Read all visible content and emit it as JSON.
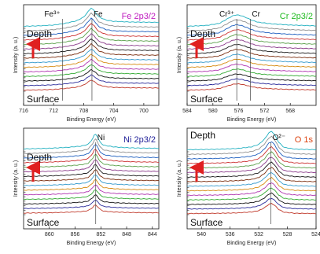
{
  "palette": [
    "#c0392b",
    "#2a2a9a",
    "#111111",
    "#33aa33",
    "#b035b0",
    "#d68a10",
    "#3399cc",
    "#7a2d0e",
    "#1a1a1a",
    "#8a3a8a",
    "#5aa04a",
    "#cc3333",
    "#1e5fbf",
    "#909090",
    "#22b0c0"
  ],
  "chart_data": [
    {
      "id": "fe",
      "type": "line",
      "title": "Fe 2p3/2",
      "title_color": "#c020c0",
      "xlabel": "Binding Energy (eV)",
      "ylabel": "Intensity (a. u.)",
      "xlim": [
        716,
        698
      ],
      "xticks": [
        716,
        712,
        708,
        704,
        700
      ],
      "top_label": "Depth",
      "bottom_label": "Surface",
      "markers": [
        {
          "label": "Fe³⁺",
          "x": 710.8
        },
        {
          "label": "Fe",
          "x": 706.9
        }
      ],
      "n_series": 15,
      "profile": [
        [
          716,
          0.1
        ],
        [
          714,
          0.12
        ],
        [
          712,
          0.16
        ],
        [
          710.5,
          0.24
        ],
        [
          709,
          0.36
        ],
        [
          708,
          0.55
        ],
        [
          707.4,
          0.82
        ],
        [
          707.0,
          1.0
        ],
        [
          706.6,
          0.86
        ],
        [
          706.0,
          0.56
        ],
        [
          705.0,
          0.4
        ],
        [
          704.0,
          0.34
        ],
        [
          702.0,
          0.31
        ],
        [
          700.0,
          0.3
        ],
        [
          698,
          0.29
        ]
      ]
    },
    {
      "id": "cr",
      "type": "line",
      "title": "Cr 2p3/2",
      "title_color": "#22bb22",
      "xlabel": "Binding Energy (eV)",
      "ylabel": "Intensity (a. u.)",
      "xlim": [
        584,
        564
      ],
      "xticks": [
        584,
        580,
        576,
        572,
        568
      ],
      "top_label": "Depth",
      "bottom_label": "Surface",
      "markers": [
        {
          "label": "Cr³⁺",
          "x": 576.3
        },
        {
          "label": "Cr",
          "x": 574.2
        }
      ],
      "n_series": 15,
      "profile": [
        [
          584,
          0.1
        ],
        [
          581,
          0.14
        ],
        [
          579,
          0.24
        ],
        [
          578,
          0.42
        ],
        [
          577,
          0.6
        ],
        [
          576.4,
          0.66
        ],
        [
          575.6,
          0.62
        ],
        [
          574.8,
          0.52
        ],
        [
          574.0,
          0.4
        ],
        [
          573.0,
          0.3
        ],
        [
          571,
          0.22
        ],
        [
          568,
          0.16
        ],
        [
          564,
          0.12
        ]
      ]
    },
    {
      "id": "ni",
      "type": "line",
      "title": "Ni 2p3/2",
      "title_color": "#222299",
      "xlabel": "Binding Energy (eV)",
      "ylabel": "Intensity (a. u.)",
      "xlim": [
        864,
        843
      ],
      "xticks": [
        860,
        856,
        852,
        848,
        844
      ],
      "top_label": "Depth",
      "bottom_label": "Surface",
      "markers": [
        {
          "label": "Ni",
          "x": 852.8
        }
      ],
      "n_series": 15,
      "profile": [
        [
          864,
          0.14
        ],
        [
          860,
          0.17
        ],
        [
          857,
          0.22
        ],
        [
          855,
          0.28
        ],
        [
          854,
          0.36
        ],
        [
          853.3,
          0.62
        ],
        [
          852.9,
          0.9
        ],
        [
          852.6,
          0.78
        ],
        [
          852.2,
          0.5
        ],
        [
          851.6,
          0.32
        ],
        [
          850,
          0.24
        ],
        [
          848,
          0.2
        ],
        [
          846,
          0.18
        ],
        [
          843,
          0.17
        ]
      ]
    },
    {
      "id": "o",
      "type": "line",
      "title": "O 1s",
      "title_color": "#dd4411",
      "xlabel": "Binding Energy (eV)",
      "ylabel": "Intensity (a. u.)",
      "xlim": [
        542,
        524
      ],
      "xticks": [
        540,
        536,
        532,
        528,
        524
      ],
      "top_label": "Depth",
      "bottom_label": "Surface",
      "markers": [
        {
          "label": "O²⁻",
          "x": 530.3
        }
      ],
      "n_series": 15,
      "profile": [
        [
          542,
          0.1
        ],
        [
          538,
          0.12
        ],
        [
          535,
          0.16
        ],
        [
          533,
          0.24
        ],
        [
          532,
          0.36
        ],
        [
          531.2,
          0.62
        ],
        [
          530.6,
          0.92
        ],
        [
          530.2,
          1.0
        ],
        [
          529.8,
          0.84
        ],
        [
          529.2,
          0.46
        ],
        [
          528.5,
          0.22
        ],
        [
          527,
          0.13
        ],
        [
          524,
          0.1
        ]
      ]
    }
  ]
}
